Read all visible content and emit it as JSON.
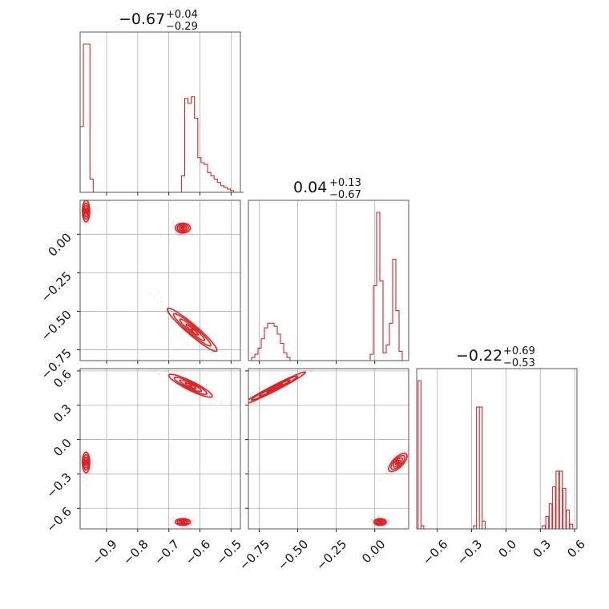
{
  "chart_data": {
    "type": "corner",
    "color": "#d62728",
    "params": [
      {
        "title_main": "−0.67",
        "title_plus": "+0.04",
        "title_minus": "−0.29",
        "range": [
          -0.985,
          -0.47
        ],
        "ticks": [
          -0.9,
          -0.8,
          -0.7,
          -0.6,
          -0.5
        ],
        "tick_labels": [
          "−0.9",
          "−0.8",
          "−0.7",
          "−0.6",
          "−0.5"
        ],
        "hist": {
          "edges_start": -0.985,
          "bin_width": 0.0105,
          "counts": [
            40,
            90,
            90,
            8,
            0,
            0,
            0,
            0,
            0,
            0,
            0,
            0,
            0,
            0,
            0,
            0,
            0,
            0,
            0,
            0,
            0,
            0,
            0,
            0,
            0,
            0,
            0,
            0,
            0,
            0,
            0,
            10,
            57,
            54,
            58,
            45,
            21,
            18,
            17,
            12,
            10,
            8,
            6,
            4,
            3,
            2,
            1,
            0,
            0,
            0
          ]
        }
      },
      {
        "title_main": "0.04",
        "title_plus": "+0.13",
        "title_minus": "−0.67",
        "range": [
          -0.82,
          0.22
        ],
        "ticks": [
          -0.75,
          -0.5,
          -0.25,
          0.0
        ],
        "tick_labels": [
          "−0.75",
          "−0.50",
          "−0.25",
          "0.00"
        ],
        "hist": {
          "edges_start": -0.82,
          "bin_width": 0.0208,
          "counts": [
            0,
            2,
            4,
            8,
            14,
            21,
            24,
            24,
            22,
            17,
            11,
            5,
            2,
            0,
            0,
            0,
            0,
            0,
            0,
            0,
            0,
            0,
            0,
            0,
            0,
            0,
            0,
            0,
            0,
            0,
            0,
            0,
            0,
            0,
            0,
            0,
            0,
            0,
            4,
            48,
            95,
            51,
            5,
            10,
            24,
            65,
            32,
            6,
            0,
            0
          ]
        },
        "y_ticks": [
          0.0,
          -0.25,
          -0.5,
          -0.75
        ],
        "y_tick_labels": [
          "0.00",
          "−0.25",
          "−0.50",
          "−0.75"
        ]
      },
      {
        "title_main": "−0.22",
        "title_plus": "+0.69",
        "title_minus": "−0.53",
        "range": [
          -0.78,
          0.62
        ],
        "ticks": [
          -0.6,
          -0.3,
          0.0,
          0.3,
          0.6
        ],
        "tick_labels": [
          "−0.6",
          "−0.3",
          "0.0",
          "0.3",
          "0.6"
        ],
        "hist": {
          "edges_start": -0.78,
          "bin_width": 0.028,
          "counts": [
            0,
            95,
            2,
            0,
            0,
            0,
            0,
            0,
            0,
            0,
            0,
            0,
            0,
            0,
            0,
            0,
            0,
            0,
            0,
            0,
            0,
            0,
            0,
            0,
            0,
            0,
            0,
            0,
            0,
            0,
            0,
            0,
            0,
            0,
            0,
            0,
            0,
            0,
            0,
            0,
            0,
            0,
            0,
            0,
            0,
            0,
            0,
            0,
            0,
            0
          ]
        },
        "y_ticks": [
          0.6,
          0.3,
          0.0,
          -0.3,
          -0.6
        ],
        "y_tick_labels": [
          "0.6",
          "0.3",
          "0.0",
          "−0.3",
          "−0.6"
        ]
      }
    ],
    "hist3_modes": [
      {
        "bins": [
          [
            -0.755,
            95
          ],
          [
            -0.73,
            2
          ]
        ]
      },
      {
        "bins": [
          [
            -0.27,
            2
          ],
          [
            -0.245,
            78
          ],
          [
            -0.22,
            78
          ],
          [
            -0.195,
            5
          ]
        ]
      },
      {
        "bins": [
          [
            0.33,
            2
          ],
          [
            0.36,
            8
          ],
          [
            0.39,
            16
          ],
          [
            0.42,
            27
          ],
          [
            0.45,
            37
          ],
          [
            0.48,
            37
          ],
          [
            0.51,
            26
          ],
          [
            0.54,
            12
          ],
          [
            0.57,
            3
          ]
        ]
      }
    ],
    "clusters": {
      "p01": [
        {
          "cx": -0.966,
          "cy": 0.15,
          "sx": 0.006,
          "sy": 0.035,
          "rho": 0.0
        },
        {
          "cx": -0.655,
          "cy": 0.04,
          "sx": 0.012,
          "sy": 0.016,
          "rho": 0.0
        },
        {
          "cx": -0.625,
          "cy": -0.62,
          "sx": 0.04,
          "sy": 0.07,
          "rho": -0.95
        }
      ],
      "p02": [
        {
          "cx": -0.966,
          "cy": -0.2,
          "sx": 0.006,
          "sy": 0.045,
          "rho": 0.0
        },
        {
          "cx": -0.63,
          "cy": 0.47,
          "sx": 0.035,
          "sy": 0.05,
          "rho": -0.9
        },
        {
          "cx": -0.655,
          "cy": -0.72,
          "sx": 0.012,
          "sy": 0.015,
          "rho": 0.0
        }
      ],
      "p12": [
        {
          "cx": -0.65,
          "cy": 0.45,
          "sx": 0.1,
          "sy": 0.07,
          "rho": 0.98
        },
        {
          "cx": 0.15,
          "cy": -0.2,
          "sx": 0.03,
          "sy": 0.04,
          "rho": 0.7
        },
        {
          "cx": 0.035,
          "cy": -0.72,
          "sx": 0.02,
          "sy": 0.015,
          "rho": 0.0
        }
      ]
    }
  }
}
